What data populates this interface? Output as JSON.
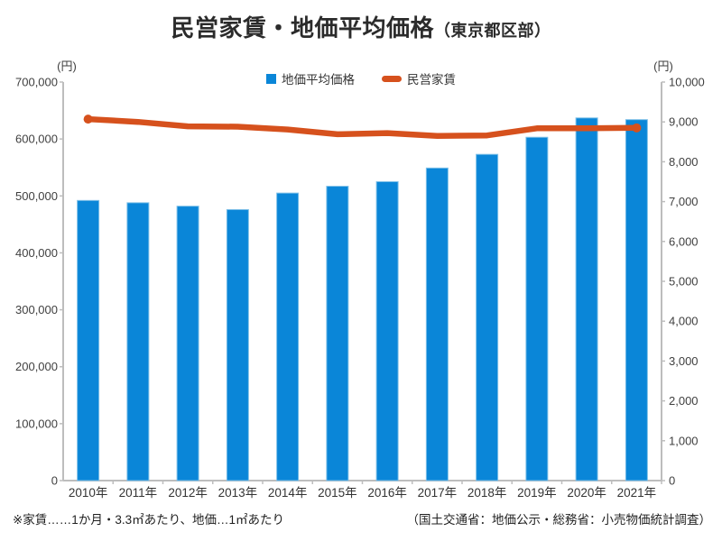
{
  "title": {
    "main": "民営家賃・地価平均価格",
    "suffix": "（東京都区部）"
  },
  "legend": [
    {
      "label": "地価平均価格",
      "type": "bar"
    },
    {
      "label": "民営家賃",
      "type": "line"
    }
  ],
  "left_axis": {
    "unit": "(円)",
    "min": 0,
    "max": 700000,
    "step": 100000
  },
  "right_axis": {
    "unit": "(円)",
    "min": 0,
    "max": 10000,
    "step": 1000
  },
  "footnotes": {
    "left": "※家賃……1か月・3.3㎡あたり、地価…1㎡あたり",
    "right": "（国土交通省：地価公示・総務省：小売物価統計調査）"
  },
  "colors": {
    "bar": "#0a86d8",
    "bar_border": "#7fc0e8",
    "line": "#d6511d",
    "axis": "#bdbdbd",
    "tick_text": "#3f3f3f",
    "xlabel_text": "#333333"
  },
  "chart_data": {
    "type": "bar+line",
    "title": "民営家賃・地価平均価格（東京都区部）",
    "categories": [
      "2010年",
      "2011年",
      "2012年",
      "2013年",
      "2014年",
      "2015年",
      "2016年",
      "2017年",
      "2018年",
      "2019年",
      "2020年",
      "2021年"
    ],
    "series": [
      {
        "name": "地価平均価格",
        "type": "bar",
        "axis": "left",
        "unit": "円/㎡",
        "values": [
          492000,
          488000,
          482000,
          476000,
          505000,
          517000,
          525000,
          549000,
          573000,
          603000,
          637000,
          634000
        ]
      },
      {
        "name": "民営家賃",
        "type": "line",
        "axis": "right",
        "unit": "円/3.3㎡・月",
        "values": [
          9070,
          9000,
          8890,
          8880,
          8810,
          8690,
          8720,
          8650,
          8660,
          8840,
          8840,
          8850
        ]
      }
    ],
    "left_ylim": [
      0,
      700000
    ],
    "right_ylim": [
      0,
      10000
    ],
    "grid": false,
    "legend_position": "top-center"
  }
}
